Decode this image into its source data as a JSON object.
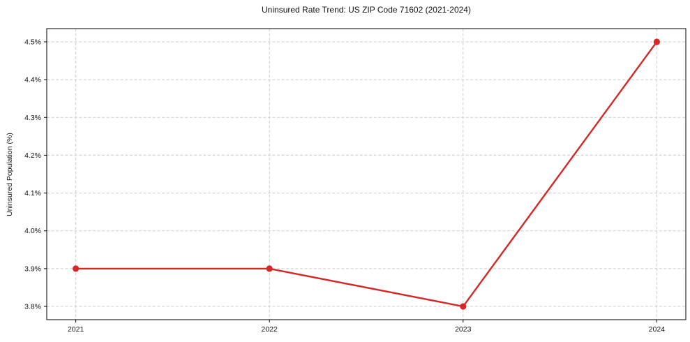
{
  "figure": {
    "background": "#ffffff",
    "text_color": "#111111"
  },
  "chart_data": {
    "type": "line",
    "title": "Uninsured Rate Trend: US ZIP Code 71602 (2021-2024)",
    "xlabel": "",
    "ylabel": "Uninsured Population (%)",
    "x": [
      2021,
      2022,
      2023,
      2024
    ],
    "x_tick_labels": [
      "2021",
      "2022",
      "2023",
      "2024"
    ],
    "y_ticks": [
      3.8,
      3.9,
      4.0,
      4.1,
      4.2,
      4.3,
      4.4,
      4.5
    ],
    "y_tick_labels": [
      "3.8%",
      "3.9%",
      "4.0%",
      "4.1%",
      "4.2%",
      "4.3%",
      "4.4%",
      "4.5%"
    ],
    "series": [
      {
        "values": [
          3.9,
          3.9,
          3.8,
          4.5
        ],
        "color": "#d62728",
        "marker": "circle",
        "line_width": 2.4,
        "marker_radius": 4.6
      }
    ],
    "xlim": [
      2020.85,
      2024.15
    ],
    "ylim": [
      3.765,
      4.535
    ],
    "grid": true,
    "grid_style": "dashed",
    "grid_color": "#cccccc",
    "legend_position": "none"
  }
}
